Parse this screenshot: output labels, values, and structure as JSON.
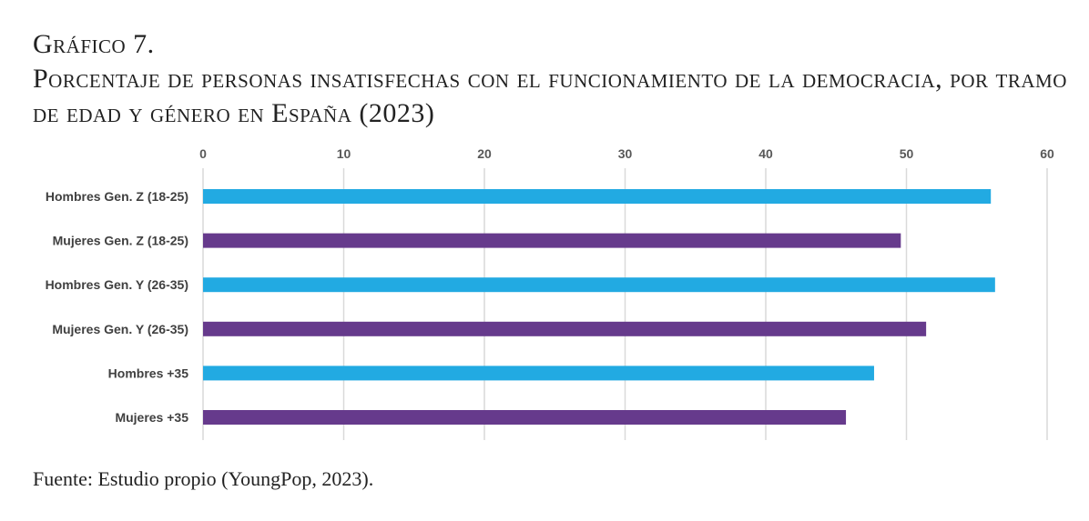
{
  "header": {
    "figure_label": "Gráfico 7.",
    "title": "Porcentaje de personas insatisfechas con el funcionamiento de la democracia, por tramo de edad y género en España (2023)"
  },
  "footer": {
    "source": "Fuente: Estudio propio (YoungPop, 2023)."
  },
  "chart_data": {
    "type": "bar",
    "orientation": "horizontal",
    "title": "Porcentaje de personas insatisfechas con el funcionamiento de la democracia, por tramo de edad y género en España (2023)",
    "categories": [
      "Hombres Gen. Z (18-25)",
      "Mujeres Gen. Z (18-25)",
      "Hombres Gen. Y (26-35)",
      "Mujeres Gen. Y (26-35)",
      "Hombres +35",
      "Mujeres +35"
    ],
    "values": [
      56.0,
      49.6,
      56.3,
      51.4,
      47.7,
      45.7
    ],
    "colors": [
      "#22aae2",
      "#663a8c",
      "#22aae2",
      "#663a8c",
      "#22aae2",
      "#663a8c"
    ],
    "xlim": [
      0,
      60
    ],
    "xticks": [
      "0",
      "10",
      "20",
      "30",
      "40",
      "50",
      "60"
    ],
    "axis_position": "top",
    "grid": true,
    "xlabel": "",
    "ylabel": ""
  }
}
